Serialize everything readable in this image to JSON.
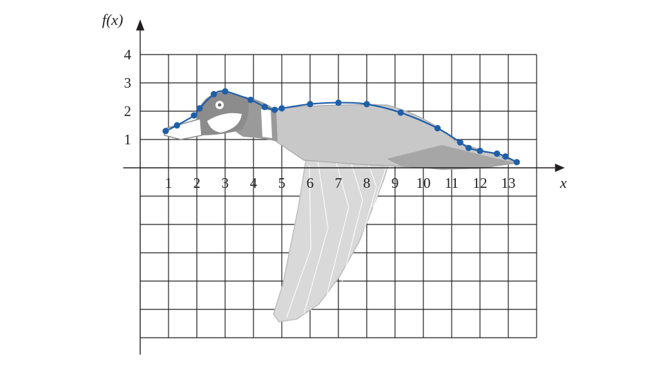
{
  "chart_data": {
    "type": "line",
    "xlabel": "x",
    "ylabel": "f(x)",
    "xlim": [
      -0.6,
      14
    ],
    "ylim": [
      -6.6,
      4.9
    ],
    "x_ticks": [
      1,
      2,
      3,
      4,
      5,
      6,
      7,
      8,
      9,
      10,
      11,
      12,
      13
    ],
    "y_ticks": [
      1,
      2,
      3,
      4
    ],
    "grid": true,
    "colors": {
      "curve": "#1f5fa8",
      "points": "#1f5fa8",
      "grid": "#231f20",
      "goose_light": "#d9d9d9",
      "goose_mid": "#bdbdbd",
      "goose_dark": "#a6a6a6"
    },
    "background_image": "goose-illustration",
    "series": [
      {
        "points": [
          {
            "x": 0.9,
            "y": 1.3
          },
          {
            "x": 1.3,
            "y": 1.5
          },
          {
            "x": 1.9,
            "y": 1.85
          },
          {
            "x": 2.1,
            "y": 2.1
          },
          {
            "x": 2.6,
            "y": 2.6
          },
          {
            "x": 3.0,
            "y": 2.7
          },
          {
            "x": 3.9,
            "y": 2.4
          },
          {
            "x": 4.4,
            "y": 2.15
          },
          {
            "x": 4.75,
            "y": 2.05
          },
          {
            "x": 5.0,
            "y": 2.1
          },
          {
            "x": 6.0,
            "y": 2.25
          },
          {
            "x": 7.0,
            "y": 2.3
          },
          {
            "x": 8.0,
            "y": 2.25
          },
          {
            "x": 9.2,
            "y": 1.95
          },
          {
            "x": 10.5,
            "y": 1.4
          },
          {
            "x": 11.3,
            "y": 0.9
          },
          {
            "x": 11.6,
            "y": 0.7
          },
          {
            "x": 12.0,
            "y": 0.6
          },
          {
            "x": 12.6,
            "y": 0.5
          },
          {
            "x": 12.9,
            "y": 0.4
          },
          {
            "x": 13.3,
            "y": 0.2
          }
        ]
      }
    ]
  }
}
